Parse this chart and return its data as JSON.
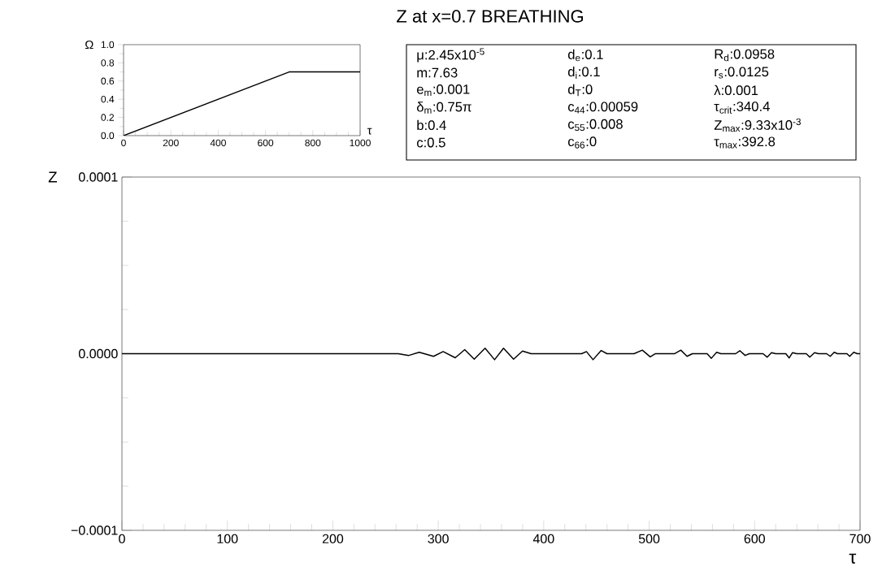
{
  "chart_data": [
    {
      "type": "line",
      "ylabel": "Ω",
      "xlabel": "τ",
      "xlim": [
        0,
        1000
      ],
      "ylim": [
        0,
        1
      ],
      "xticks": [
        0,
        200,
        400,
        600,
        800,
        1000
      ],
      "yticks": [
        {
          "value": 0,
          "label": "0.0"
        },
        {
          "value": 0.2,
          "label": "0.2"
        },
        {
          "value": 0.4,
          "label": "0.4"
        },
        {
          "value": 0.6,
          "label": "0.6"
        },
        {
          "value": 0.8,
          "label": "0.8"
        },
        {
          "value": 1,
          "label": "1.0"
        }
      ],
      "series": [
        {
          "color": "#000000",
          "x": [
            0,
            700,
            1000
          ],
          "values": [
            0,
            0.7,
            0.7
          ]
        }
      ]
    },
    {
      "type": "other",
      "title": "Z at x=0.7 BREATHING",
      "annotations": [
        "μ:2.45x10$^{-5}$",
        "m:7.63",
        "e$_{m}$:0.001",
        "δ$_{m}$:0.75π",
        "b:0.4",
        "c:0.5",
        "d$_{e}$:0.1",
        "d$_{i}$:0.1",
        "d$_{T}$:0",
        "c$_{44}$:0.00059",
        "c$_{55}$:0.008",
        "c$_{66}$:0",
        "R$_{d}$:0.0958",
        "r$_{s}$:0.0125",
        "λ:0.001",
        "τ$_{crit}$:340.4",
        "Z$_{max}$:9.33x10$^{-3}$",
        "τ$_{max}$:392.8"
      ]
    },
    {
      "type": "line",
      "ylabel": "Z",
      "xlabel": "τ",
      "xlim": [
        0,
        700
      ],
      "ylim": [
        -0.0001,
        0.0001
      ],
      "xticks": [
        0,
        100,
        200,
        300,
        400,
        500,
        600,
        700
      ],
      "yticks": [
        {
          "value": -0.0001,
          "label": "−0.0001"
        },
        {
          "value": 0,
          "label": "0.0000"
        },
        {
          "value": 0.0001,
          "label": "0.0001"
        }
      ],
      "series": [
        {
          "color": "#000000",
          "x": [
            0,
            200,
            262,
            272,
            282,
            295.5,
            304.6,
            316.1,
            325.1,
            334.1,
            344.4,
            353.4,
            361.9,
            371.4,
            379.9,
            388,
            436,
            440.5,
            446.8,
            454.5,
            460,
            485.7,
            493.5,
            501,
            506,
            524.3,
            530,
            535.9,
            541,
            555,
            559,
            564,
            568,
            582,
            586,
            591,
            595,
            608,
            612,
            616,
            620,
            629.6,
            632.8,
            636,
            640,
            649,
            652.3,
            656.8,
            660.6,
            668.3,
            671.7,
            675.5,
            678.6,
            687.6,
            690.2,
            694,
            697.4,
            700
          ],
          "values": [
            0,
            0,
            0,
            -1e-06,
            8e-07,
            -1.5e-06,
            1.2e-06,
            -2.3e-06,
            2.3e-06,
            -3.1e-06,
            3.1e-06,
            -3.4e-06,
            3.1e-06,
            -3.1e-06,
            1.5e-06,
            0,
            0,
            1.2e-06,
            -3.4e-06,
            1.8e-06,
            0,
            0,
            2e-06,
            -1.8e-06,
            0,
            0,
            2e-06,
            -1.5e-06,
            0,
            0,
            -2.6e-06,
            8e-07,
            0,
            0,
            1.7e-06,
            -1e-06,
            0,
            0,
            -2e-06,
            6e-07,
            0,
            0,
            -2.4e-06,
            6e-07,
            0,
            0,
            -2e-06,
            6e-07,
            0,
            0,
            -1.5e-06,
            8e-07,
            0,
            0,
            -1.5e-06,
            8e-07,
            0,
            0
          ]
        }
      ]
    }
  ]
}
